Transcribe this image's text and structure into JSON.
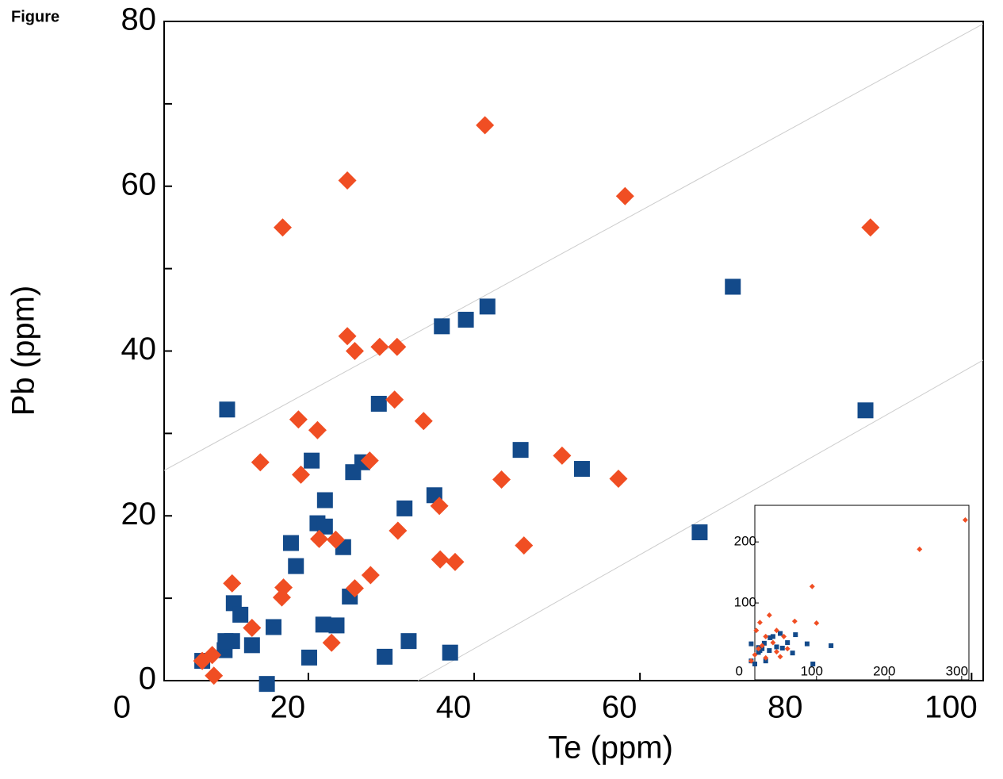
{
  "label": "Figure",
  "chart_data": [
    {
      "type": "scatter",
      "x_label": "Te (ppm)",
      "y_label": "Pb (ppm)",
      "xlim": [
        2.6,
        101.4
      ],
      "ylim": [
        0,
        80
      ],
      "xticks": [
        0,
        20,
        40,
        60,
        80,
        100
      ],
      "yticks": [
        0,
        20,
        40,
        60,
        80
      ],
      "yminor": [
        10,
        30,
        50,
        70
      ],
      "reference_lines": [
        {
          "x": [
            2.6,
            101.4
          ],
          "y": [
            25.5,
            79.7
          ],
          "color": "#cccccc"
        },
        {
          "x": [
            33.2,
            101.4
          ],
          "y": [
            0,
            38.9
          ],
          "color": "#cccccc"
        }
      ],
      "series": [
        {
          "marker": "square",
          "color": "#134a8a",
          "x": [
            7.2,
            9.9,
            10.0,
            10.8,
            11.0,
            11.8,
            13.2,
            10.2,
            15.0,
            15.8,
            17.9,
            18.5,
            20.4,
            20.1,
            21.1,
            21.8,
            22.0,
            22.0,
            23.4,
            24.2,
            25.0,
            25.4,
            26.5,
            28.5,
            29.2,
            31.6,
            32.1,
            35.2,
            36.1,
            37.1,
            39.0,
            41.6,
            45.6,
            53.0,
            67.2,
            71.2,
            87.2
          ],
          "values": [
            2.4,
            3.7,
            4.8,
            4.8,
            9.4,
            8.0,
            4.3,
            32.9,
            -0.4,
            6.5,
            16.7,
            13.9,
            26.7,
            2.8,
            19.1,
            6.8,
            18.7,
            21.9,
            6.7,
            16.2,
            10.2,
            25.3,
            26.5,
            33.6,
            2.9,
            20.9,
            4.8,
            22.5,
            43.0,
            3.4,
            43.8,
            45.4,
            28.0,
            25.7,
            18.0,
            47.8,
            32.8
          ]
        },
        {
          "marker": "diamond",
          "color": "#f04e23",
          "x": [
            7.2,
            8.4,
            8.6,
            10.8,
            13.2,
            14.2,
            16.8,
            17.0,
            16.9,
            18.8,
            19.1,
            21.1,
            21.3,
            22.8,
            23.3,
            24.7,
            24.7,
            25.6,
            25.6,
            27.4,
            27.5,
            28.6,
            30.4,
            30.7,
            30.8,
            33.9,
            35.8,
            35.9,
            37.7,
            41.3,
            43.3,
            46.0,
            50.6,
            57.4,
            58.2,
            87.8
          ],
          "values": [
            2.4,
            3.1,
            0.6,
            11.8,
            6.4,
            26.5,
            10.1,
            11.3,
            55.0,
            31.7,
            25.0,
            30.4,
            17.2,
            4.6,
            17.1,
            60.7,
            41.8,
            11.2,
            40.0,
            26.7,
            12.8,
            40.5,
            34.1,
            40.5,
            18.2,
            31.5,
            21.2,
            14.7,
            14.4,
            67.4,
            24.4,
            16.4,
            27.3,
            24.5,
            58.8,
            55.0
          ]
        }
      ]
    },
    {
      "type": "scatter",
      "xlim": [
        15,
        310
      ],
      "ylim": [
        -26,
        260
      ],
      "xticks": [
        0,
        100,
        200,
        300
      ],
      "yticks": [
        100,
        200
      ],
      "series": [
        {
          "marker": "square",
          "color": "#134a8a",
          "x": [
            87,
            71,
            67,
            120,
            53,
            45,
            40,
            36,
            10,
            28,
            20,
            25,
            22,
            30,
            15,
            20,
            35,
            10,
            60,
            50,
            95
          ],
          "values": [
            33,
            48,
            18,
            30,
            26,
            28,
            45,
            43,
            33,
            34,
            27,
            25,
            22,
            5,
            0,
            19,
            22,
            5,
            35,
            50,
            0
          ]
        },
        {
          "marker": "diamond",
          "color": "#f04e23",
          "x": [
            305,
            242,
            94,
            35,
            70,
            22,
            100,
            45,
            55,
            30,
            17,
            40,
            25,
            60,
            15,
            30,
            45,
            10,
            20,
            50
          ],
          "values": [
            236,
            188,
            127,
            80,
            70,
            68,
            67,
            55,
            45,
            45,
            55,
            35,
            30,
            25,
            15,
            10,
            20,
            5,
            25,
            12
          ]
        }
      ]
    }
  ]
}
